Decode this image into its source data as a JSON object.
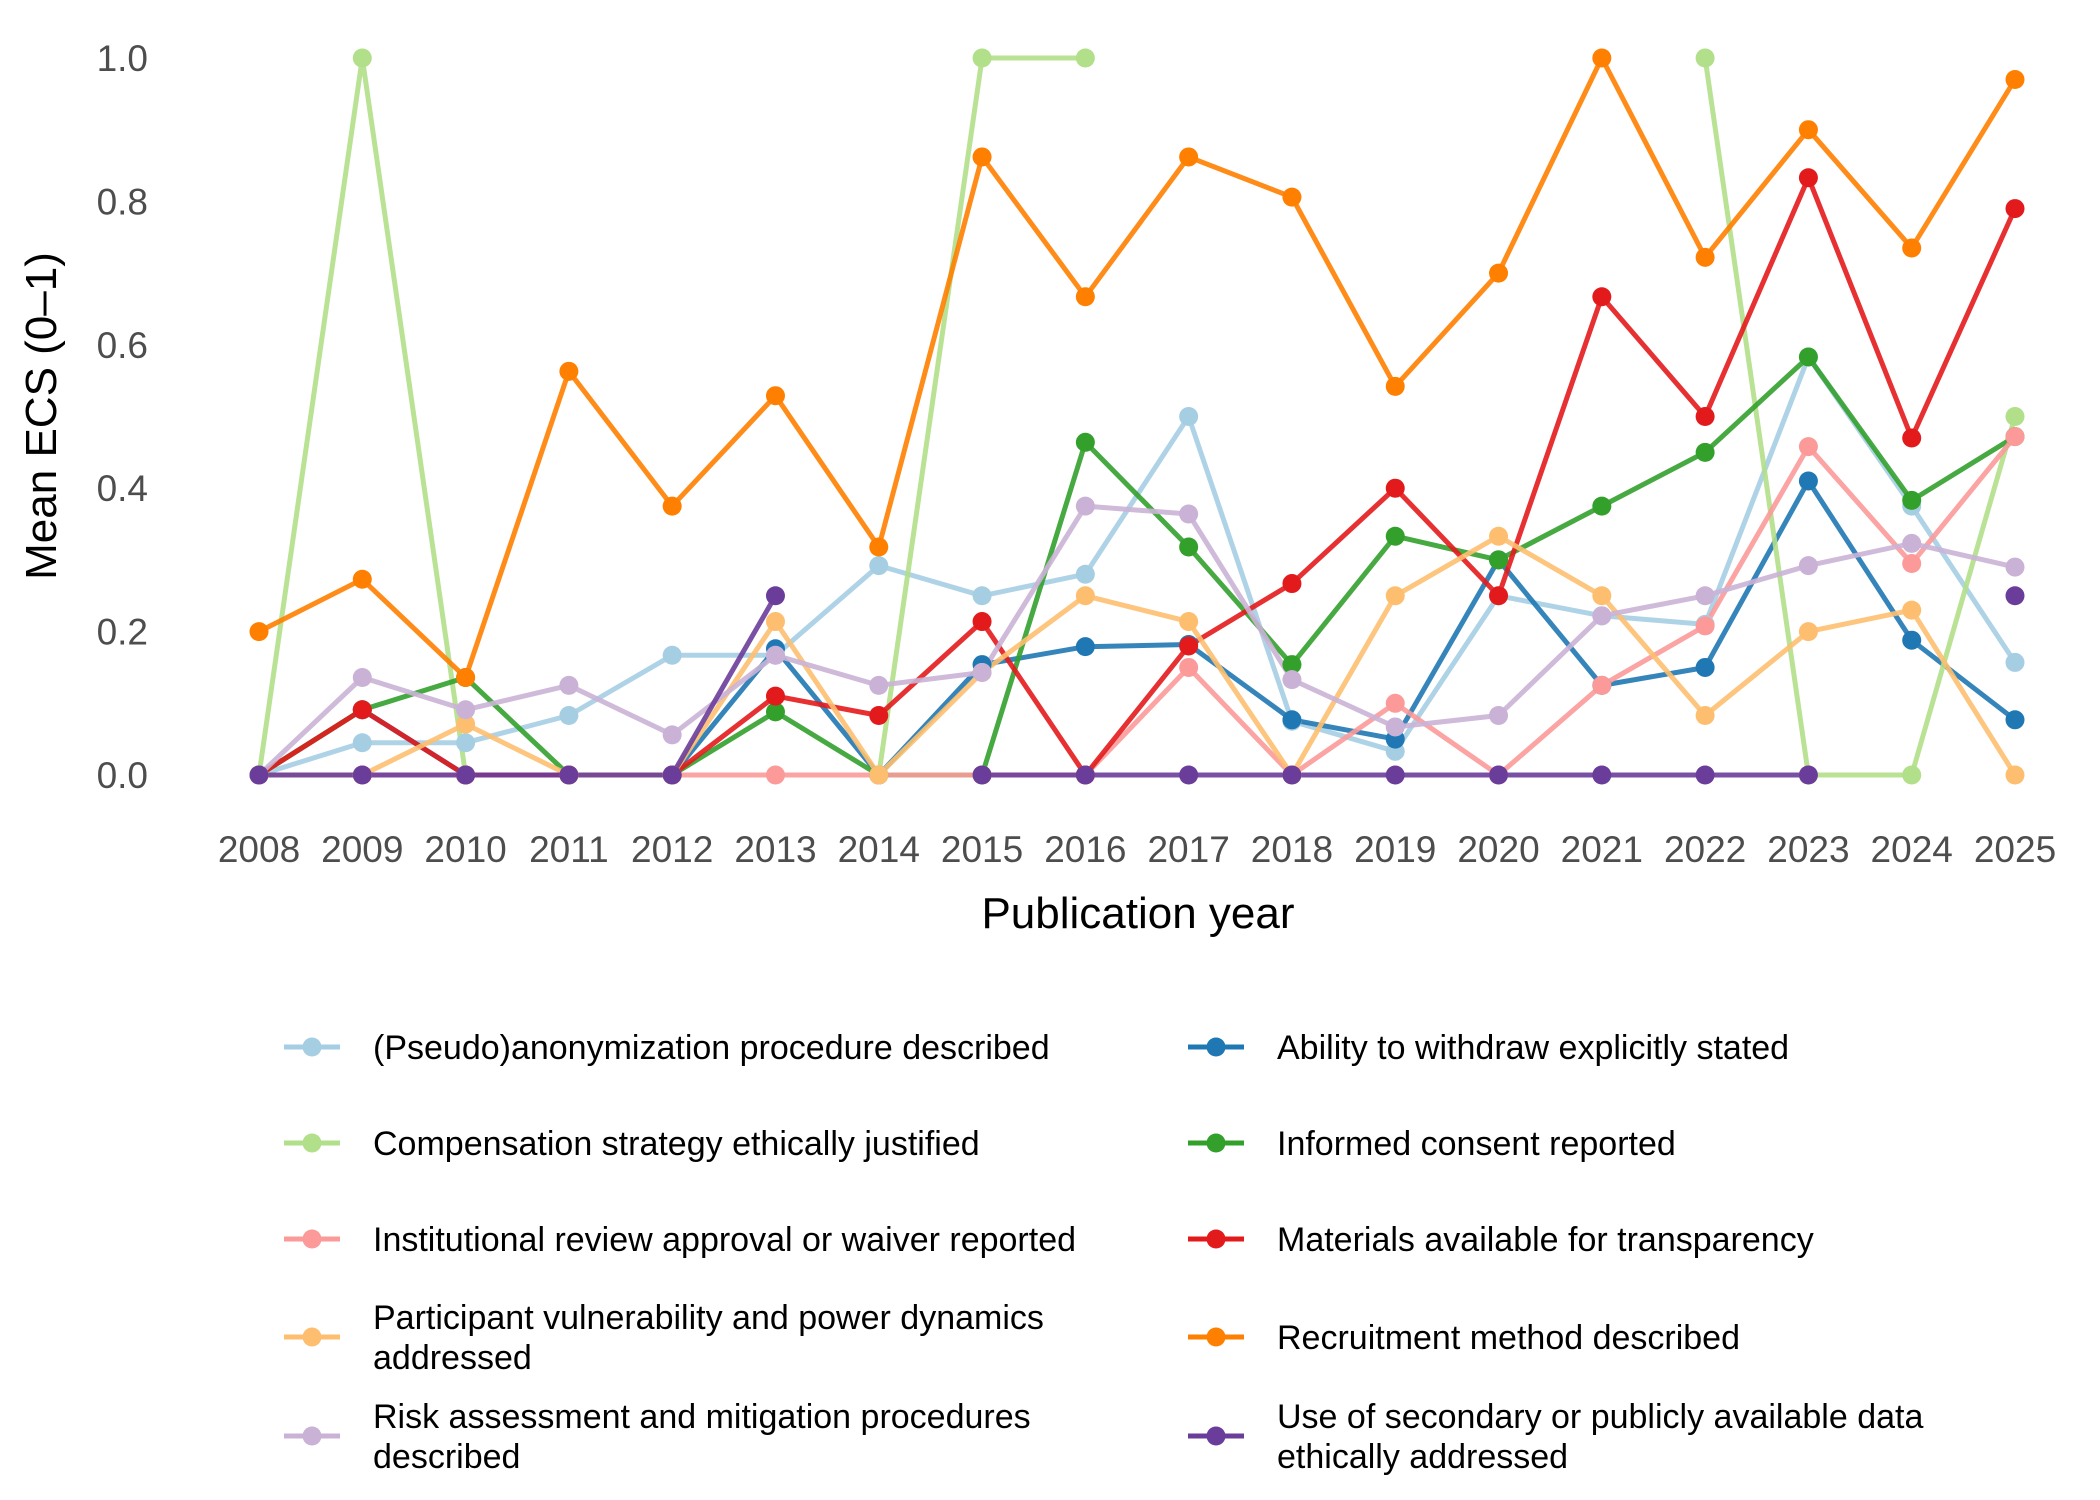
{
  "chart_data": {
    "type": "line",
    "title": "",
    "xlabel": "Publication year",
    "ylabel": "Mean ECS (0–1)",
    "x": [
      "2008",
      "2009",
      "2010",
      "2011",
      "2012",
      "2013",
      "2014",
      "2015",
      "2016",
      "2017",
      "2018",
      "2019",
      "2020",
      "2021",
      "2022",
      "2023",
      "2024",
      "2025"
    ],
    "y_ticks": [
      "0.0",
      "0.2",
      "0.4",
      "0.6",
      "0.8",
      "1.0"
    ],
    "ylim": [
      0,
      1
    ],
    "grid": false,
    "legend_position": "bottom",
    "series": [
      {
        "name": "(Pseudo)anonymization procedure described",
        "color": "#a6cee3",
        "values": [
          0,
          0.045,
          0.045,
          0.083,
          0.167,
          0.167,
          0.292,
          0.25,
          0.28,
          0.5,
          0.075,
          0.033,
          0.25,
          0.222,
          0.21,
          0.583,
          0.375,
          0.157
        ]
      },
      {
        "name": "Ability to withdraw explicitly stated",
        "color": "#1f78b4",
        "values": [
          0,
          0.091,
          0,
          0,
          0,
          0.176,
          0,
          0.154,
          0.179,
          0.182,
          0.077,
          0.05,
          0.3,
          0.125,
          0.15,
          0.41,
          0.188,
          0.077
        ]
      },
      {
        "name": "Compensation strategy ethically justified",
        "color": "#b2df8a",
        "values": [
          0,
          1,
          0,
          null,
          null,
          null,
          0,
          1,
          1,
          null,
          null,
          null,
          null,
          null,
          1,
          0,
          0,
          0.5
        ]
      },
      {
        "name": "Informed consent reported",
        "color": "#33a02c",
        "values": [
          0,
          0.091,
          0.136,
          0,
          0,
          0.088,
          0,
          0,
          0.464,
          0.318,
          0.154,
          0.333,
          0.3,
          0.375,
          0.45,
          0.583,
          0.383,
          0.472
        ]
      },
      {
        "name": "Institutional review approval or waiver reported",
        "color": "#fb9a99",
        "values": [
          0,
          0,
          0,
          0,
          0,
          0,
          0,
          0,
          0,
          0.15,
          0,
          0.1,
          0,
          0.125,
          0.208,
          0.458,
          0.295,
          0.472
        ]
      },
      {
        "name": "Materials available for transparency",
        "color": "#e31a1c",
        "values": [
          0,
          0.091,
          0,
          0,
          0,
          0.11,
          0.083,
          0.214,
          0,
          0.18,
          0.267,
          0.4,
          0.25,
          0.667,
          0.5,
          0.833,
          0.47,
          0.79
        ]
      },
      {
        "name": "Participant vulnerability and power dynamics addressed",
        "color": "#fdbf6f",
        "values": [
          0,
          0,
          0.071,
          0,
          0,
          0.214,
          0,
          0.143,
          0.25,
          0.214,
          0,
          0.25,
          0.333,
          0.25,
          0.083,
          0.2,
          0.23,
          0
        ]
      },
      {
        "name": "Recruitment method described",
        "color": "#ff7f00",
        "values": [
          0.2,
          0.273,
          0.136,
          0.563,
          0.375,
          0.529,
          0.318,
          0.862,
          0.667,
          0.862,
          0.806,
          0.542,
          0.7,
          1,
          0.722,
          0.9,
          0.735,
          0.97
        ]
      },
      {
        "name": "Risk assessment and mitigation procedures described",
        "color": "#cab2d6",
        "values": [
          0,
          0.136,
          0.091,
          0.125,
          0.056,
          0.167,
          0.125,
          0.143,
          0.375,
          0.364,
          0.133,
          0.067,
          0.083,
          0.222,
          0.25,
          0.292,
          0.323,
          0.29
        ]
      },
      {
        "name": "Use of secondary or publicly available data ethically addressed",
        "color": "#6a3d9a",
        "values": [
          0,
          0,
          0,
          0,
          0,
          0.25,
          null,
          0,
          0,
          0,
          0,
          0,
          0,
          0,
          0,
          0,
          null,
          0.25
        ]
      }
    ],
    "legend": [
      {
        "lines": [
          "(Pseudo)anonymization procedure described"
        ],
        "color": "#a6cee3"
      },
      {
        "lines": [
          "Ability to withdraw explicitly stated"
        ],
        "color": "#1f78b4"
      },
      {
        "lines": [
          "Compensation strategy ethically justified"
        ],
        "color": "#b2df8a"
      },
      {
        "lines": [
          "Informed consent reported"
        ],
        "color": "#33a02c"
      },
      {
        "lines": [
          "Institutional review approval or waiver reported"
        ],
        "color": "#fb9a99"
      },
      {
        "lines": [
          "Materials available for transparency"
        ],
        "color": "#e31a1c"
      },
      {
        "lines": [
          "Participant vulnerability and power dynamics",
          "addressed"
        ],
        "color": "#fdbf6f"
      },
      {
        "lines": [
          "Recruitment method described"
        ],
        "color": "#ff7f00"
      },
      {
        "lines": [
          "Risk assessment and mitigation procedures",
          "described"
        ],
        "color": "#cab2d6"
      },
      {
        "lines": [
          "Use of secondary or publicly available data",
          "ethically addressed"
        ],
        "color": "#6a3d9a"
      }
    ]
  }
}
